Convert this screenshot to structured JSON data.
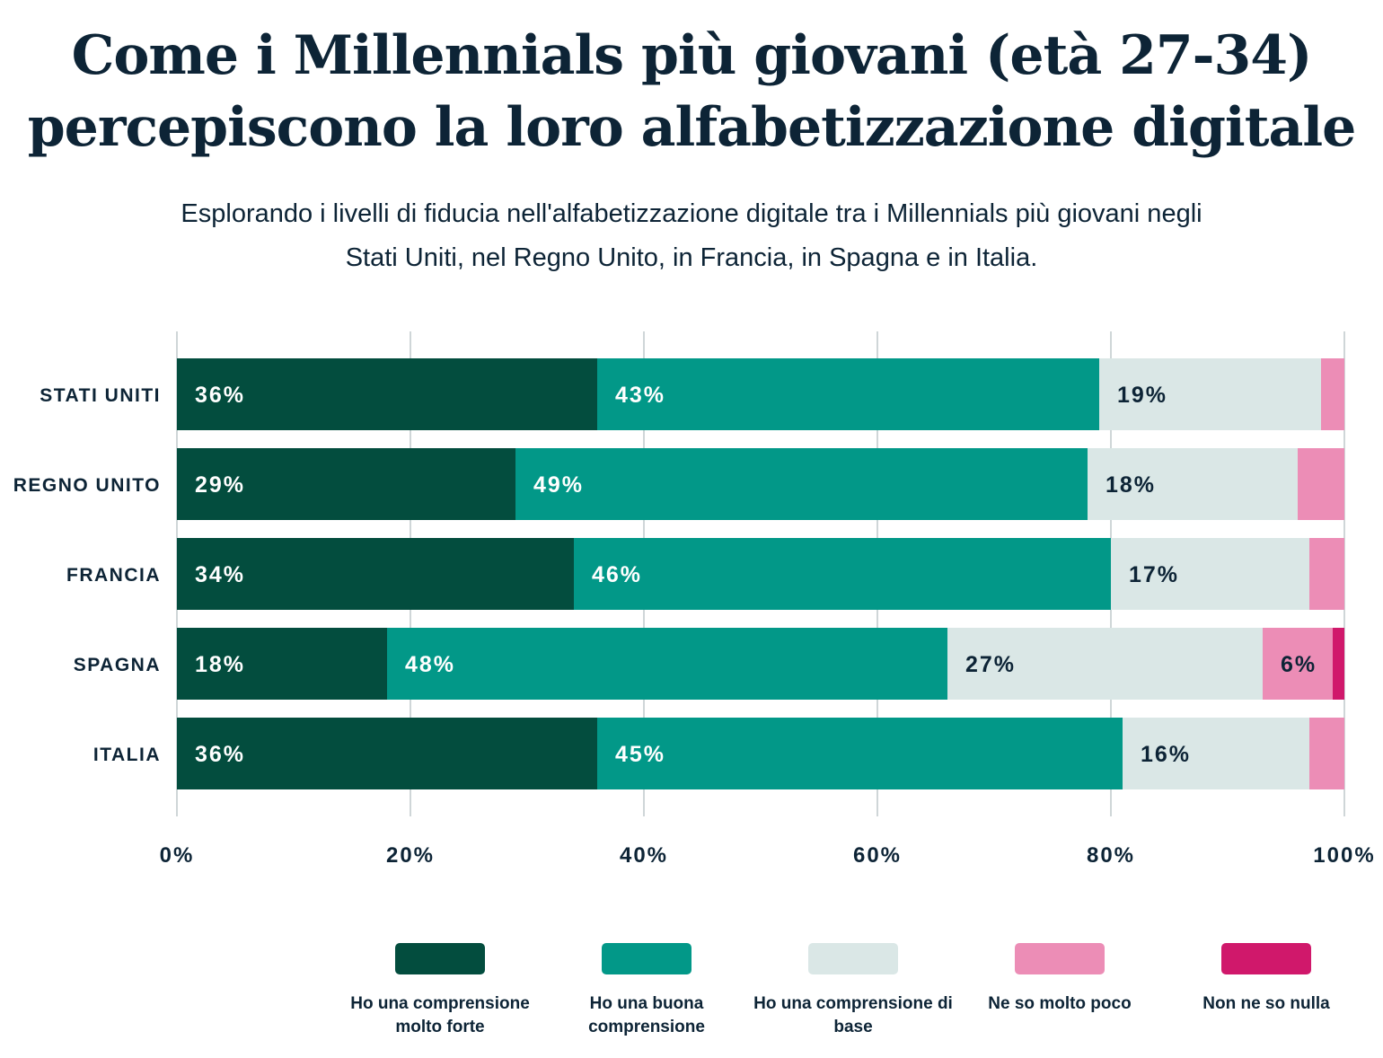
{
  "chart_data": {
    "type": "bar",
    "orientation": "horizontal",
    "stacked": true,
    "title": "Come i Millennials più giovani (età 27-34) percepiscono la loro alfabetizzazione digitale",
    "subtitle": "Esplorando i livelli di fiducia nell'alfabetizzazione digitale tra i Millennials più giovani negli Stati Uniti, nel Regno Unito, in Francia, in Spagna e in Italia.",
    "categories": [
      "STATI UNITI",
      "REGNO UNITO",
      "FRANCIA",
      "SPAGNA",
      "ITALIA"
    ],
    "series": [
      {
        "name": "Ho una comprensione molto forte",
        "color": "#034d3e",
        "label_color": "#ffffff",
        "values": [
          36,
          29,
          34,
          18,
          36
        ]
      },
      {
        "name": "Ho una buona comprensione",
        "color": "#029888",
        "label_color": "#ffffff",
        "values": [
          43,
          49,
          46,
          48,
          45
        ]
      },
      {
        "name": "Ho una comprensione di base",
        "color": "#dae7e6",
        "label_color": "#0d2436",
        "values": [
          19,
          18,
          17,
          27,
          16
        ]
      },
      {
        "name": "Ne so molto poco",
        "color": "#ec8db6",
        "label_color": "#0d2436",
        "values": [
          2,
          4,
          3,
          6,
          3
        ]
      },
      {
        "name": "Non ne so nulla",
        "color": "#d0186b",
        "label_color": "#ffffff",
        "values": [
          0,
          0,
          0,
          1,
          0
        ]
      }
    ],
    "xlim": [
      0,
      100
    ],
    "xticks": [
      "0%",
      "20%",
      "40%",
      "60%",
      "80%",
      "100%"
    ],
    "grid": true,
    "legend_position": "bottom"
  }
}
